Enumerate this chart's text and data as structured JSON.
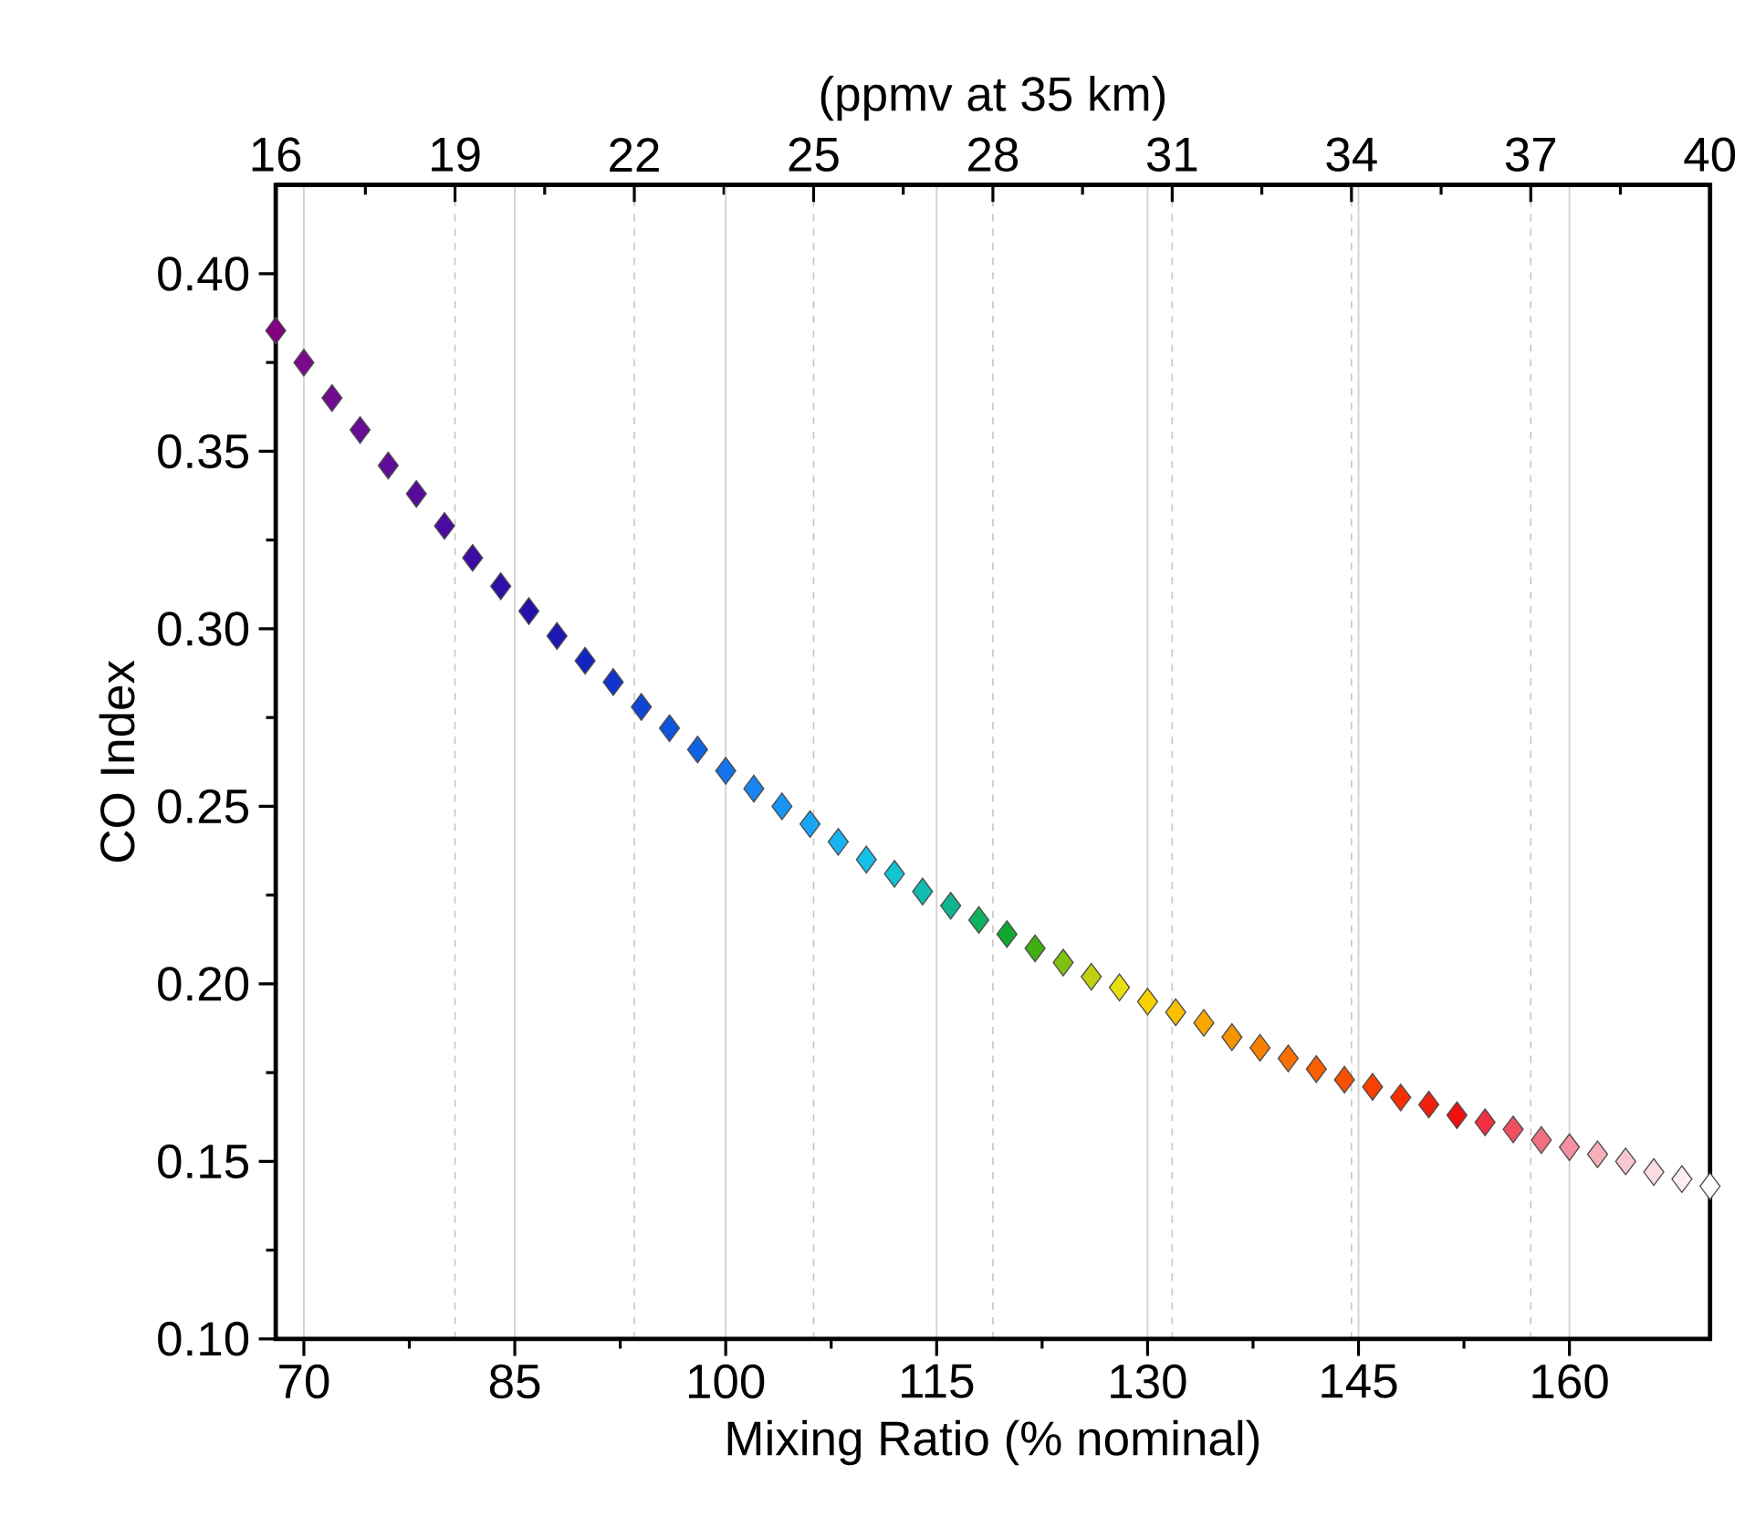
{
  "chart_data": {
    "type": "scatter",
    "xlabel": "Mixing Ratio (% nominal)",
    "ylabel": "CO Index",
    "x2label": "(ppmv at 35 km)",
    "xlim": [
      68,
      170
    ],
    "xticks": [
      70,
      85,
      100,
      115,
      130,
      145,
      160
    ],
    "x2lim": [
      16,
      40
    ],
    "x2ticks": [
      16,
      19,
      22,
      25,
      28,
      31,
      34,
      37,
      40
    ],
    "ylim": [
      0.1,
      0.425
    ],
    "yticks": [
      {
        "value": 0.1,
        "label": "0.10"
      },
      0.15,
      {
        "value": 0.2,
        "label": "0.20"
      },
      0.25,
      {
        "value": 0.3,
        "label": "0.30"
      },
      0.35,
      {
        "value": 0.4,
        "label": "0.40"
      }
    ],
    "grid": "x",
    "marker": "diamond",
    "x": [
      68,
      70,
      72,
      74,
      76,
      78,
      80,
      82,
      84,
      86,
      88,
      90,
      92,
      94,
      96,
      98,
      100,
      102,
      104,
      106,
      108,
      110,
      112,
      114,
      116,
      118,
      120,
      122,
      124,
      126,
      128,
      130,
      132,
      134,
      136,
      138,
      140,
      142,
      144,
      146,
      148,
      150,
      152,
      154,
      156,
      158,
      160,
      162,
      164,
      166,
      168,
      170
    ],
    "values": [
      0.384,
      0.375,
      0.365,
      0.356,
      0.346,
      0.338,
      0.329,
      0.32,
      0.312,
      0.305,
      0.298,
      0.291,
      0.285,
      0.278,
      0.272,
      0.266,
      0.26,
      0.255,
      0.25,
      0.245,
      0.24,
      0.235,
      0.231,
      0.226,
      0.222,
      0.218,
      0.214,
      0.21,
      0.206,
      0.202,
      0.199,
      0.195,
      0.192,
      0.189,
      0.185,
      0.182,
      0.179,
      0.176,
      0.173,
      0.171,
      0.168,
      0.166,
      0.163,
      0.161,
      0.159,
      0.156,
      0.154,
      0.152,
      0.15,
      0.147,
      0.145,
      0.143
    ],
    "colors": [
      "#800080",
      "#7a0a8c",
      "#700a90",
      "#680c94",
      "#600c98",
      "#580c9c",
      "#4a0ca0",
      "#3c0ca4",
      "#300ea8",
      "#2410ac",
      "#1c18b4",
      "#1424c0",
      "#1034cc",
      "#1044d4",
      "#1054dc",
      "#1064e4",
      "#1474ec",
      "#1884f0",
      "#1894f4",
      "#18a4f4",
      "#18b4f0",
      "#14c0e8",
      "#10c4d0",
      "#10bcb0",
      "#10b490",
      "#10b060",
      "#10a830",
      "#40b010",
      "#80c010",
      "#c0d010",
      "#e8e010",
      "#f8d000",
      "#f8c000",
      "#f8a800",
      "#f89400",
      "#f88000",
      "#f87000",
      "#f86000",
      "#f85000",
      "#f84000",
      "#f83000",
      "#f02010",
      "#f01010",
      "#f03040",
      "#f05060",
      "#f07080",
      "#f490a0",
      "#f8b0b8",
      "#f8c8d0",
      "#fcdce0",
      "#feeef0",
      "#ffffff"
    ]
  }
}
